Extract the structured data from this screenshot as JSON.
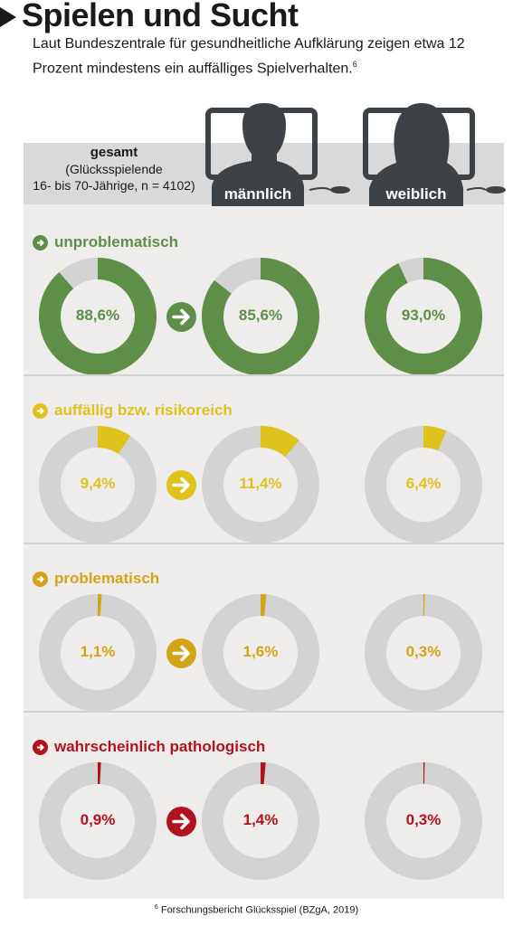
{
  "title": "Spielen und Sucht",
  "subtitle": "Laut Bundeszentrale für gesundheitliche Aufklärung zeigen etwa 12 Prozent mindestens ein auffälliges Spielverhalten.",
  "subtitle_note": "6",
  "header": {
    "gesamt_title": "gesamt",
    "gesamt_line1": "(Glücksspielende",
    "gesamt_line2": "16- bis 70-Jährige, n = 4102)",
    "male_label": "männlich",
    "female_label": "weiblich"
  },
  "footnote_mark": "6",
  "footnote_text": "Forschungsbericht Glücksspiel (BZgA, 2019)",
  "colors": {
    "panel": "#efedeb",
    "ring_bg": "#d3d3d3",
    "person": "#3d4246"
  },
  "chart_data": {
    "type": "donut",
    "columns": [
      "gesamt",
      "männlich",
      "weiblich"
    ],
    "categories": [
      {
        "name": "unproblematisch",
        "color": "#5e8f48",
        "values": [
          88.6,
          85.6,
          93.0
        ],
        "labels": [
          "88,6%",
          "85,6%",
          "93,0%"
        ]
      },
      {
        "name": "auffällig bzw. risikoreich",
        "color": "#e0c21d",
        "values": [
          9.4,
          11.4,
          6.4
        ],
        "labels": [
          "9,4%",
          "11,4%",
          "6,4%"
        ]
      },
      {
        "name": "problematisch",
        "color": "#d4a418",
        "values": [
          1.1,
          1.6,
          0.3
        ],
        "labels": [
          "1,1%",
          "1,6%",
          "0,3%"
        ]
      },
      {
        "name": "wahrscheinlich pathologisch",
        "color": "#b0131e",
        "values": [
          0.9,
          1.4,
          0.3
        ],
        "labels": [
          "0,9%",
          "1,4%",
          "0,3%"
        ]
      }
    ]
  }
}
